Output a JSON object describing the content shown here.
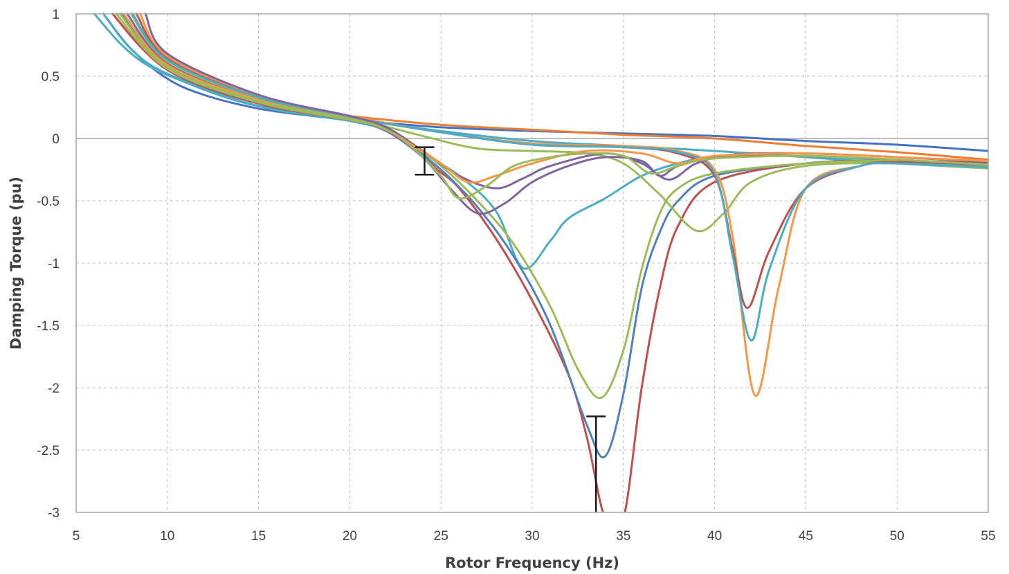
{
  "chart_data": {
    "type": "line",
    "title": "",
    "xlabel": "Rotor Frequency (Hz)",
    "ylabel": "Damping Torque (pu)",
    "xlim": [
      5,
      55
    ],
    "ylim": [
      -3,
      1
    ],
    "xticks": [
      5,
      10,
      15,
      20,
      25,
      30,
      35,
      40,
      45,
      50,
      55
    ],
    "yticks": [
      1,
      0.5,
      0,
      -0.5,
      -1,
      -1.5,
      -2,
      -2.5,
      -3
    ],
    "ytick_labels": [
      "1",
      "0.5",
      "0",
      "-0.5",
      "-1",
      "-1.5",
      "-2",
      "-2.5",
      "-3"
    ],
    "grid": true,
    "legend": "none",
    "series": [
      {
        "color": "#4472c4",
        "values": [
          [
            6.5,
            1.0
          ],
          [
            8,
            0.72
          ],
          [
            10,
            0.48
          ],
          [
            12,
            0.35
          ],
          [
            15,
            0.24
          ],
          [
            18,
            0.18
          ],
          [
            20,
            0.15
          ],
          [
            25,
            0.09
          ],
          [
            30,
            0.06
          ],
          [
            35,
            0.04
          ],
          [
            40,
            0.02
          ],
          [
            45,
            -0.02
          ],
          [
            50,
            -0.05
          ],
          [
            55,
            -0.1
          ]
        ]
      },
      {
        "color": "#ed7d31",
        "values": [
          [
            7,
            1.0
          ],
          [
            8.5,
            0.74
          ],
          [
            10,
            0.58
          ],
          [
            12,
            0.42
          ],
          [
            15,
            0.3
          ],
          [
            18,
            0.22
          ],
          [
            20,
            0.18
          ],
          [
            25,
            0.11
          ],
          [
            30,
            0.07
          ],
          [
            35,
            0.03
          ],
          [
            40,
            0.0
          ],
          [
            45,
            -0.06
          ],
          [
            50,
            -0.11
          ],
          [
            55,
            -0.17
          ]
        ]
      },
      {
        "color": "#4bacc6",
        "values": [
          [
            6,
            1.0
          ],
          [
            7.5,
            0.75
          ],
          [
            9,
            0.58
          ],
          [
            11,
            0.45
          ],
          [
            13,
            0.34
          ],
          [
            15,
            0.26
          ],
          [
            18,
            0.2
          ],
          [
            20,
            0.16
          ],
          [
            25,
            0.06
          ],
          [
            30,
            -0.02
          ],
          [
            35,
            -0.06
          ],
          [
            40,
            -0.1
          ],
          [
            45,
            -0.15
          ],
          [
            50,
            -0.2
          ],
          [
            55,
            -0.24
          ]
        ]
      },
      {
        "color": "#4bacc6",
        "values": [
          [
            6.5,
            1.0
          ],
          [
            8,
            0.72
          ],
          [
            10,
            0.52
          ],
          [
            15,
            0.26
          ],
          [
            20,
            0.14
          ],
          [
            22,
            0.06
          ],
          [
            24,
            -0.12
          ],
          [
            26,
            -0.3
          ],
          [
            28,
            -0.58
          ],
          [
            29.5,
            -1.04
          ],
          [
            31,
            -0.82
          ],
          [
            32,
            -0.64
          ],
          [
            34,
            -0.48
          ],
          [
            36,
            -0.3
          ],
          [
            38,
            -0.2
          ],
          [
            40,
            -0.15
          ],
          [
            45,
            -0.14
          ],
          [
            50,
            -0.18
          ],
          [
            55,
            -0.22
          ]
        ]
      },
      {
        "color": "#c0504d",
        "values": [
          [
            7,
            1.0
          ],
          [
            10,
            0.55
          ],
          [
            15,
            0.28
          ],
          [
            20,
            0.15
          ],
          [
            22,
            0.08
          ],
          [
            23.5,
            -0.08
          ],
          [
            24.8,
            -0.25
          ],
          [
            26,
            -0.4
          ],
          [
            28,
            -0.8
          ],
          [
            30,
            -1.3
          ],
          [
            32,
            -1.9
          ],
          [
            33,
            -2.4
          ],
          [
            34,
            -3.05
          ],
          [
            35,
            -3.05
          ],
          [
            36,
            -2.0
          ],
          [
            37,
            -1.2
          ],
          [
            38,
            -0.7
          ],
          [
            40,
            -0.35
          ],
          [
            45,
            -0.2
          ],
          [
            50,
            -0.18
          ],
          [
            55,
            -0.2
          ]
        ]
      },
      {
        "color": "#4f81bd",
        "values": [
          [
            7.5,
            1.0
          ],
          [
            10,
            0.58
          ],
          [
            15,
            0.3
          ],
          [
            20,
            0.16
          ],
          [
            22,
            0.08
          ],
          [
            23.5,
            -0.08
          ],
          [
            25,
            -0.25
          ],
          [
            27,
            -0.55
          ],
          [
            29,
            -0.95
          ],
          [
            31,
            -1.5
          ],
          [
            33,
            -2.3
          ],
          [
            34,
            -2.55
          ],
          [
            35,
            -2.05
          ],
          [
            36,
            -1.2
          ],
          [
            37,
            -0.75
          ],
          [
            38,
            -0.5
          ],
          [
            40,
            -0.3
          ],
          [
            45,
            -0.2
          ],
          [
            50,
            -0.18
          ],
          [
            55,
            -0.21
          ]
        ]
      },
      {
        "color": "#9bbb59",
        "values": [
          [
            7.2,
            1.0
          ],
          [
            10,
            0.56
          ],
          [
            15,
            0.29
          ],
          [
            20,
            0.15
          ],
          [
            22,
            0.08
          ],
          [
            23.5,
            -0.06
          ],
          [
            25,
            -0.22
          ],
          [
            27,
            -0.5
          ],
          [
            29,
            -0.85
          ],
          [
            31,
            -1.35
          ],
          [
            32.5,
            -1.85
          ],
          [
            33.8,
            -2.08
          ],
          [
            35,
            -1.7
          ],
          [
            36,
            -1.05
          ],
          [
            37,
            -0.6
          ],
          [
            38,
            -0.4
          ],
          [
            40,
            -0.28
          ],
          [
            45,
            -0.2
          ],
          [
            50,
            -0.18
          ],
          [
            55,
            -0.21
          ]
        ]
      },
      {
        "color": "#9bbb59",
        "values": [
          [
            8,
            1.0
          ],
          [
            10,
            0.62
          ],
          [
            15,
            0.32
          ],
          [
            20,
            0.17
          ],
          [
            24,
            0.02
          ],
          [
            27,
            -0.08
          ],
          [
            30,
            -0.1
          ],
          [
            33,
            -0.12
          ],
          [
            35,
            -0.2
          ],
          [
            37,
            -0.45
          ],
          [
            39,
            -0.74
          ],
          [
            40.5,
            -0.6
          ],
          [
            42,
            -0.35
          ],
          [
            45,
            -0.22
          ],
          [
            50,
            -0.2
          ],
          [
            55,
            -0.24
          ]
        ]
      },
      {
        "color": "#f79646",
        "values": [
          [
            8.5,
            1.0
          ],
          [
            10,
            0.66
          ],
          [
            15,
            0.34
          ],
          [
            20,
            0.18
          ],
          [
            25,
            0.05
          ],
          [
            30,
            -0.04
          ],
          [
            35,
            -0.06
          ],
          [
            38,
            -0.1
          ],
          [
            40,
            -0.25
          ],
          [
            41,
            -0.8
          ],
          [
            42.2,
            -2.06
          ],
          [
            43.5,
            -1.2
          ],
          [
            45,
            -0.4
          ],
          [
            48,
            -0.22
          ],
          [
            50,
            -0.2
          ],
          [
            55,
            -0.22
          ]
        ]
      },
      {
        "color": "#c0504d",
        "values": [
          [
            8.3,
            1.0
          ],
          [
            10,
            0.64
          ],
          [
            15,
            0.33
          ],
          [
            20,
            0.17
          ],
          [
            25,
            0.05
          ],
          [
            30,
            -0.05
          ],
          [
            35,
            -0.07
          ],
          [
            38,
            -0.12
          ],
          [
            40,
            -0.3
          ],
          [
            41,
            -0.9
          ],
          [
            41.8,
            -1.36
          ],
          [
            43,
            -0.9
          ],
          [
            45,
            -0.4
          ],
          [
            48,
            -0.22
          ],
          [
            50,
            -0.19
          ],
          [
            55,
            -0.21
          ]
        ]
      },
      {
        "color": "#4bacc6",
        "values": [
          [
            8.1,
            1.0
          ],
          [
            10,
            0.63
          ],
          [
            15,
            0.33
          ],
          [
            20,
            0.17
          ],
          [
            25,
            0.05
          ],
          [
            30,
            -0.05
          ],
          [
            35,
            -0.07
          ],
          [
            38,
            -0.11
          ],
          [
            40,
            -0.28
          ],
          [
            41,
            -0.95
          ],
          [
            42,
            -1.62
          ],
          [
            43,
            -1.05
          ],
          [
            45,
            -0.4
          ],
          [
            48,
            -0.22
          ],
          [
            50,
            -0.2
          ],
          [
            55,
            -0.23
          ]
        ]
      },
      {
        "color": "#8064a2",
        "values": [
          [
            7.8,
            1.0
          ],
          [
            10,
            0.6
          ],
          [
            15,
            0.31
          ],
          [
            20,
            0.16
          ],
          [
            22,
            0.06
          ],
          [
            24,
            -0.15
          ],
          [
            25.5,
            -0.4
          ],
          [
            27,
            -0.6
          ],
          [
            28.5,
            -0.52
          ],
          [
            30,
            -0.35
          ],
          [
            32,
            -0.22
          ],
          [
            34,
            -0.15
          ],
          [
            36,
            -0.18
          ],
          [
            37,
            -0.3
          ],
          [
            38,
            -0.22
          ],
          [
            40,
            -0.15
          ],
          [
            45,
            -0.14
          ],
          [
            50,
            -0.17
          ],
          [
            55,
            -0.21
          ]
        ]
      },
      {
        "color": "#8064a2",
        "values": [
          [
            8.8,
            1.0
          ],
          [
            10,
            0.68
          ],
          [
            15,
            0.35
          ],
          [
            20,
            0.18
          ],
          [
            22,
            0.09
          ],
          [
            24,
            -0.1
          ],
          [
            26,
            -0.3
          ],
          [
            28,
            -0.4
          ],
          [
            29.5,
            -0.32
          ],
          [
            31,
            -0.22
          ],
          [
            34,
            -0.12
          ],
          [
            36,
            -0.2
          ],
          [
            37.5,
            -0.33
          ],
          [
            39,
            -0.2
          ],
          [
            41,
            -0.13
          ],
          [
            45,
            -0.12
          ],
          [
            50,
            -0.15
          ],
          [
            55,
            -0.19
          ]
        ]
      },
      {
        "color": "#f79646",
        "values": [
          [
            7.6,
            1.0
          ],
          [
            10,
            0.59
          ],
          [
            15,
            0.31
          ],
          [
            20,
            0.16
          ],
          [
            22,
            0.07
          ],
          [
            23.5,
            -0.06
          ],
          [
            25,
            -0.2
          ],
          [
            26.5,
            -0.35
          ],
          [
            28,
            -0.3
          ],
          [
            30,
            -0.2
          ],
          [
            33,
            -0.1
          ],
          [
            36,
            -0.12
          ],
          [
            38,
            -0.2
          ],
          [
            40,
            -0.14
          ],
          [
            45,
            -0.12
          ],
          [
            50,
            -0.15
          ],
          [
            55,
            -0.18
          ]
        ]
      },
      {
        "color": "#9bbb59",
        "values": [
          [
            7.4,
            1.0
          ],
          [
            10,
            0.57
          ],
          [
            15,
            0.3
          ],
          [
            20,
            0.16
          ],
          [
            22,
            0.07
          ],
          [
            23.5,
            -0.08
          ],
          [
            25,
            -0.3
          ],
          [
            26,
            -0.48
          ],
          [
            27.5,
            -0.38
          ],
          [
            29,
            -0.22
          ],
          [
            31,
            -0.15
          ],
          [
            33,
            -0.12
          ],
          [
            35,
            -0.14
          ],
          [
            36.5,
            -0.28
          ],
          [
            38,
            -0.22
          ],
          [
            40,
            -0.16
          ],
          [
            45,
            -0.14
          ],
          [
            50,
            -0.17
          ],
          [
            55,
            -0.21
          ]
        ]
      }
    ],
    "markers": [
      {
        "x": 24.1,
        "y_top": -0.07,
        "y_bottom": -0.29
      },
      {
        "x": 33.5,
        "y_top": -2.23,
        "y_bottom": -3.0
      }
    ]
  }
}
